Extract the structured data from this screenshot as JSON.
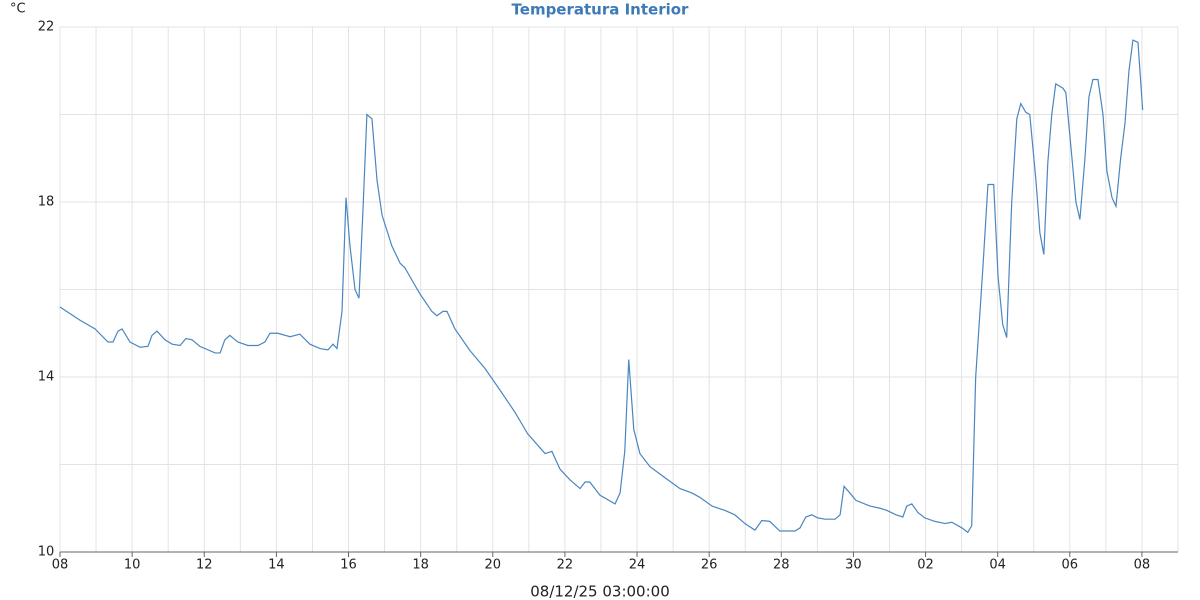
{
  "chart_data": {
    "type": "line",
    "title": "Temperatura Interior",
    "ylabel": "°C",
    "xlabel": "08/12/25 03:00:00",
    "xlim": [
      0,
      31
    ],
    "ylim": [
      10,
      22
    ],
    "xticks": [
      {
        "value": 0,
        "label": "08"
      },
      {
        "value": 2,
        "label": "10"
      },
      {
        "value": 4,
        "label": "12"
      },
      {
        "value": 6,
        "label": "14"
      },
      {
        "value": 8,
        "label": "16"
      },
      {
        "value": 10,
        "label": "18"
      },
      {
        "value": 12,
        "label": "20"
      },
      {
        "value": 14,
        "label": "22"
      },
      {
        "value": 16,
        "label": "24"
      },
      {
        "value": 18,
        "label": "26"
      },
      {
        "value": 20,
        "label": "28"
      },
      {
        "value": 22,
        "label": "30"
      },
      {
        "value": 24,
        "label": "02"
      },
      {
        "value": 26,
        "label": "04"
      },
      {
        "value": 28,
        "label": "06"
      },
      {
        "value": 30,
        "label": "08"
      }
    ],
    "xminor_ticks": [
      1,
      3,
      5,
      7,
      9,
      11,
      13,
      15,
      17,
      19,
      21,
      23,
      25,
      27,
      29,
      31
    ],
    "yticks": [
      10,
      14,
      18,
      22
    ],
    "yminor_ticks": [
      12,
      16,
      20
    ],
    "grid": true,
    "series": [
      {
        "name": "Temperatura Interior",
        "color": "#4a86c0",
        "x": [
          0,
          0.55,
          0.97,
          1.33,
          1.47,
          1.61,
          1.72,
          1.94,
          2.22,
          2.44,
          2.55,
          2.69,
          2.91,
          3.11,
          3.33,
          3.49,
          3.66,
          3.88,
          4.3,
          4.44,
          4.57,
          4.71,
          4.93,
          5.21,
          5.49,
          5.68,
          5.82,
          6.04,
          6.38,
          6.65,
          6.93,
          7.21,
          7.43,
          7.57,
          7.68,
          7.82,
          7.93,
          8.04,
          8.18,
          8.29,
          8.4,
          8.51,
          8.65,
          8.79,
          8.93,
          9.2,
          9.43,
          9.56,
          9.98,
          10.31,
          10.45,
          10.62,
          10.73,
          10.95,
          11.37,
          11.78,
          12.2,
          12.61,
          12.97,
          13.45,
          13.64,
          13.86,
          14.14,
          14.42,
          14.56,
          14.69,
          14.97,
          15.39,
          15.53,
          15.66,
          15.77,
          15.91,
          16.08,
          16.36,
          16.77,
          17.19,
          17.52,
          17.74,
          18.08,
          18.44,
          18.71,
          18.99,
          19.27,
          19.46,
          19.68,
          19.96,
          20.38,
          20.52,
          20.68,
          20.85,
          21.01,
          21.21,
          21.49,
          21.63,
          21.74,
          21.9,
          22.07,
          22.46,
          22.74,
          22.93,
          23.18,
          23.37,
          23.48,
          23.62,
          23.79,
          23.98,
          24.26,
          24.54,
          24.73,
          25.01,
          25.17,
          25.28,
          25.39,
          25.59,
          25.73,
          25.89,
          26.01,
          26.14,
          26.25,
          26.39,
          26.53,
          26.64,
          26.78,
          26.89,
          27.06,
          27.17,
          27.28,
          27.39,
          27.5,
          27.61,
          27.81,
          27.89,
          28.06,
          28.17,
          28.28,
          28.42,
          28.53,
          28.64,
          28.78,
          28.92,
          29.03,
          29.17,
          29.28,
          29.41,
          29.53,
          29.64,
          29.75,
          29.89,
          30.02
        ],
        "values": [
          15.6,
          15.3,
          15.1,
          14.8,
          14.8,
          15.05,
          15.1,
          14.8,
          14.68,
          14.7,
          14.95,
          15.05,
          14.85,
          14.75,
          14.72,
          14.88,
          14.85,
          14.7,
          14.55,
          14.55,
          14.85,
          14.95,
          14.8,
          14.72,
          14.72,
          14.8,
          15.0,
          15.0,
          14.92,
          14.98,
          14.75,
          14.65,
          14.62,
          14.75,
          14.65,
          15.5,
          18.1,
          17.0,
          16.0,
          15.8,
          17.8,
          20.0,
          19.9,
          18.5,
          17.7,
          17.0,
          16.6,
          16.5,
          15.9,
          15.5,
          15.4,
          15.5,
          15.5,
          15.1,
          14.6,
          14.2,
          13.7,
          13.2,
          12.7,
          12.25,
          12.3,
          11.9,
          11.65,
          11.45,
          11.6,
          11.6,
          11.3,
          11.1,
          11.35,
          12.3,
          14.4,
          12.8,
          12.25,
          11.95,
          11.7,
          11.45,
          11.35,
          11.25,
          11.05,
          10.95,
          10.85,
          10.65,
          10.5,
          10.72,
          10.7,
          10.48,
          10.48,
          10.55,
          10.8,
          10.85,
          10.78,
          10.75,
          10.75,
          10.85,
          11.5,
          11.35,
          11.18,
          11.05,
          11.0,
          10.95,
          10.85,
          10.8,
          11.05,
          11.1,
          10.9,
          10.78,
          10.7,
          10.65,
          10.68,
          10.55,
          10.45,
          10.6,
          14.0,
          16.5,
          18.4,
          18.4,
          16.3,
          15.2,
          14.9,
          18.0,
          19.9,
          20.25,
          20.05,
          20.0,
          18.5,
          17.3,
          16.8,
          18.9,
          20.0,
          20.7,
          20.6,
          20.5,
          19.0,
          18.0,
          17.6,
          19.0,
          20.4,
          20.8,
          20.8,
          20.0,
          18.7,
          18.1,
          17.9,
          19.0,
          19.8,
          21.0,
          21.7,
          21.65,
          20.1
        ]
      }
    ]
  }
}
